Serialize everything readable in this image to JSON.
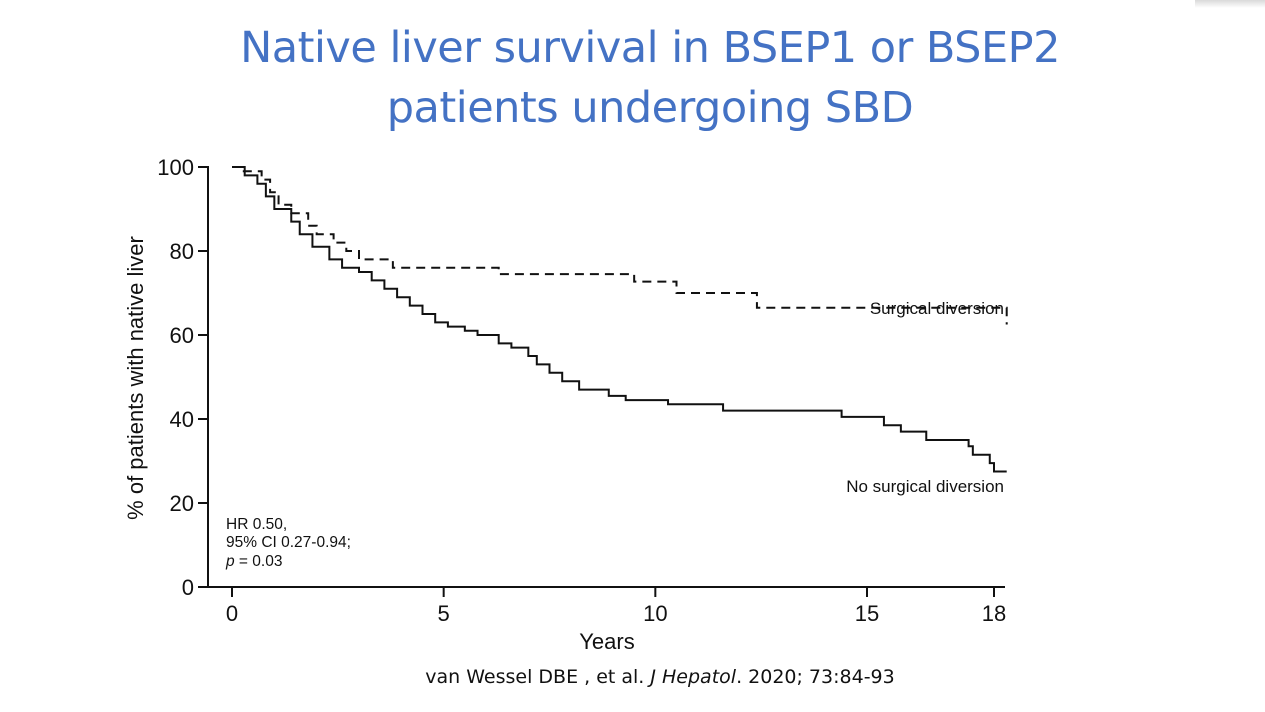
{
  "slide": {
    "title_line1": "Native liver survival in BSEP1 or BSEP2",
    "title_line2": "patients undergoing SBD",
    "title_color": "#4472C4",
    "citation_authors": "van Wessel DBE , et al. ",
    "citation_journal": "J Hepatol",
    "citation_rest": ". 2020; 73:84-93"
  },
  "chart_data": {
    "type": "line",
    "subtype": "kaplan-meier step",
    "title": "",
    "xlabel": "Years",
    "ylabel": "% of patients with native liver",
    "xlim": [
      0,
      18
    ],
    "ylim": [
      0,
      100
    ],
    "xticks": [
      0,
      5,
      10,
      15,
      18
    ],
    "xtick_labels": [
      "0",
      "5",
      "10",
      "15",
      "18"
    ],
    "yticks": [
      0,
      20,
      40,
      60,
      80,
      100
    ],
    "ytick_labels": [
      "0",
      "20",
      "40",
      "60",
      "80",
      "100"
    ],
    "grid": false,
    "annotation": {
      "line1": "HR 0.50,",
      "line2": "95% CI 0.27-0.94;",
      "line3_italic": "p",
      "line3_rest": " = 0.03",
      "placement": "bottom-left"
    },
    "series": [
      {
        "name": "Surgical diversion",
        "style": "dashed",
        "color": "#111111",
        "label_placement": "right, above line",
        "x": [
          0,
          0.2,
          0.7,
          0.9,
          1.1,
          1.4,
          1.8,
          2.0,
          2.4,
          2.7,
          3.0,
          3.8,
          6.3,
          9.5,
          10.5,
          12.4,
          18.3
        ],
        "y": [
          100,
          99,
          97,
          94,
          91,
          89,
          86,
          84,
          82,
          80,
          78,
          76,
          74.5,
          72.7,
          70,
          66.5,
          62.5
        ]
      },
      {
        "name": "No surgical diversion",
        "style": "solid",
        "color": "#111111",
        "label_placement": "right, below line",
        "x": [
          0,
          0.3,
          0.6,
          0.8,
          1.0,
          1.4,
          1.6,
          1.9,
          2.3,
          2.6,
          3.0,
          3.3,
          3.6,
          3.9,
          4.2,
          4.5,
          4.8,
          5.1,
          5.5,
          5.8,
          6.3,
          6.6,
          7.0,
          7.2,
          7.5,
          7.8,
          8.2,
          8.9,
          9.3,
          10.3,
          11.6,
          14.4,
          15.4,
          15.8,
          16.4,
          17.4,
          17.5,
          17.9,
          18.0,
          18.3
        ],
        "y": [
          100,
          98,
          96,
          93,
          90,
          87,
          84,
          81,
          78,
          76,
          75,
          73,
          71,
          69,
          67,
          65,
          63,
          62,
          61,
          60,
          58,
          57,
          55,
          53,
          51,
          49,
          47,
          45.5,
          44.5,
          43.5,
          42,
          40.5,
          38.5,
          37,
          35,
          33.5,
          31.5,
          29.5,
          27.5,
          27.5
        ]
      }
    ]
  }
}
